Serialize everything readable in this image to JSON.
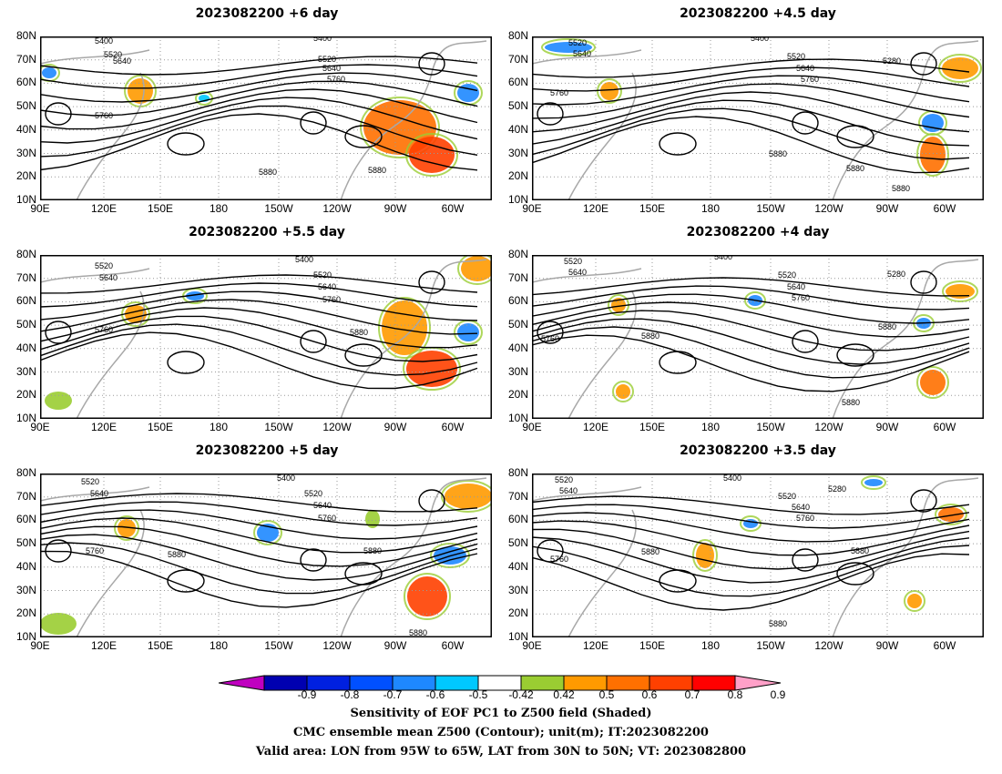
{
  "panels": [
    {
      "title": "2023082200  +6  day"
    },
    {
      "title": "2023082200  +4.5  day"
    },
    {
      "title": "2023082200  +5.5  day"
    },
    {
      "title": "2023082200  +4  day"
    },
    {
      "title": "2023082200  +5  day"
    },
    {
      "title": "2023082200  +3.5  day"
    }
  ],
  "lat_ticks": [
    "80N",
    "70N",
    "60N",
    "50N",
    "40N",
    "30N",
    "20N",
    "10N"
  ],
  "lon_ticks": [
    "90E",
    "120E",
    "150E",
    "180",
    "150W",
    "120W",
    "90W",
    "60W"
  ],
  "contour_labels": [
    "5400",
    "5520",
    "5640",
    "5760",
    "5880",
    "5280"
  ],
  "colorbar": {
    "labels": [
      "-0.9",
      "-0.8",
      "-0.7",
      "-0.6",
      "-0.5",
      "-0.42",
      "0.42",
      "0.5",
      "0.6",
      "0.7",
      "0.8",
      "0.9"
    ],
    "colors": [
      "#c000c0",
      "#0000b0",
      "#0020e0",
      "#0050ff",
      "#1e88ff",
      "#00c8ff",
      "#ffffff",
      "#9acd32",
      "#ff9a00",
      "#ff7000",
      "#ff4000",
      "#ff0000",
      "#ffa0c8"
    ]
  },
  "caption": {
    "line1": "Sensitivity of EOF PC1 to Z500 field (Shaded)",
    "line2": "CMC ensemble mean Z500 (Contour); unit(m); IT:2023082200",
    "line3": "Valid area: LON from 95W to 65W, LAT from 30N to 50N; VT: 2023082800"
  }
}
